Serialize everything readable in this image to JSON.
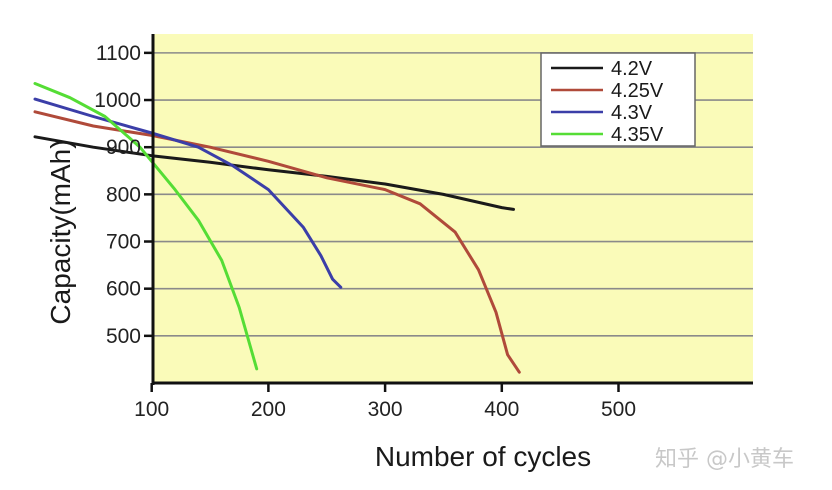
{
  "chart_data": {
    "type": "line",
    "xlabel": "Number of cycles",
    "ylabel": "Capacity(mAh)",
    "xlim": [
      0,
      500
    ],
    "ylim": [
      400,
      1140
    ],
    "x_ticks": [
      100,
      200,
      300,
      400,
      500
    ],
    "y_ticks": [
      500,
      600,
      700,
      800,
      900,
      1000,
      1100
    ],
    "grid": "horizontal",
    "legend_position": "top-right",
    "background_color": "#fafbb9",
    "series": [
      {
        "name": "4.2V",
        "color": "#1a1a1a",
        "points": [
          [
            0,
            922
          ],
          [
            50,
            900
          ],
          [
            100,
            882
          ],
          [
            150,
            868
          ],
          [
            200,
            852
          ],
          [
            250,
            838
          ],
          [
            300,
            822
          ],
          [
            350,
            800
          ],
          [
            400,
            772
          ],
          [
            410,
            768
          ]
        ]
      },
      {
        "name": "4.25V",
        "color": "#b04a3a",
        "points": [
          [
            0,
            975
          ],
          [
            50,
            945
          ],
          [
            100,
            925
          ],
          [
            150,
            900
          ],
          [
            200,
            870
          ],
          [
            250,
            835
          ],
          [
            300,
            810
          ],
          [
            330,
            780
          ],
          [
            360,
            720
          ],
          [
            380,
            640
          ],
          [
            395,
            550
          ],
          [
            405,
            460
          ],
          [
            415,
            423
          ]
        ]
      },
      {
        "name": "4.3V",
        "color": "#3b3ea8",
        "points": [
          [
            0,
            1002
          ],
          [
            50,
            965
          ],
          [
            100,
            930
          ],
          [
            140,
            900
          ],
          [
            170,
            860
          ],
          [
            200,
            810
          ],
          [
            230,
            730
          ],
          [
            245,
            670
          ],
          [
            255,
            620
          ],
          [
            262,
            603
          ]
        ]
      },
      {
        "name": "4.35V",
        "color": "#55dd35",
        "points": [
          [
            0,
            1035
          ],
          [
            30,
            1005
          ],
          [
            60,
            965
          ],
          [
            90,
            900
          ],
          [
            120,
            810
          ],
          [
            140,
            745
          ],
          [
            160,
            660
          ],
          [
            175,
            560
          ],
          [
            190,
            430
          ]
        ]
      }
    ]
  },
  "watermark": "知乎 @小黄车"
}
